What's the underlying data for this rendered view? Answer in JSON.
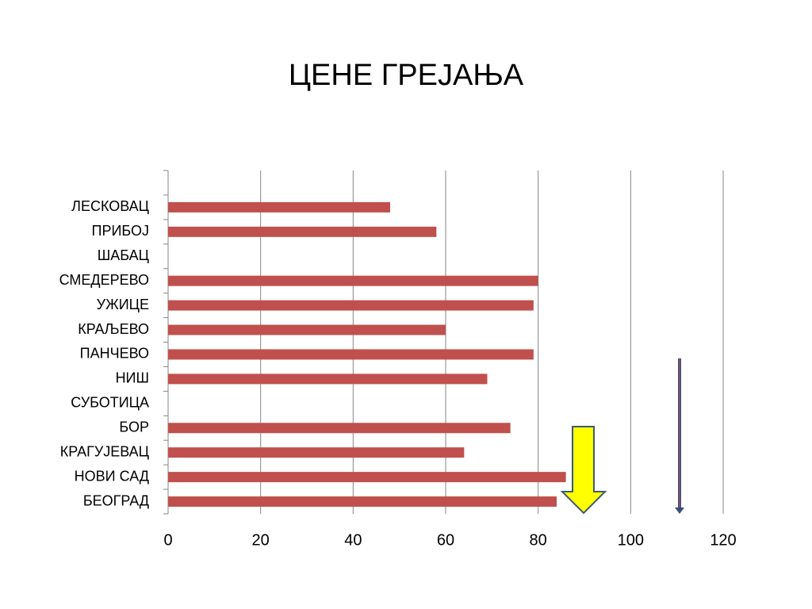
{
  "chart_data": {
    "type": "bar",
    "orientation": "horizontal",
    "title": "ЦЕНЕ ГРЕЈАЊА",
    "categories": [
      null,
      "ЛЕСКОВАЦ",
      "ПРИБОЈ",
      "ШАБАЦ",
      "СМЕДЕРЕВО",
      "УЖИЦЕ",
      "КРАЉЕВО",
      "ПАНЧЕВО",
      "НИШ",
      "СУБОТИЦА",
      "БОР",
      "КРАГУЈЕВАЦ",
      "НОВИ САД",
      "БЕОГРАД"
    ],
    "values": [
      null,
      48,
      58,
      null,
      80,
      79,
      60,
      79,
      69,
      null,
      74,
      64,
      86,
      84
    ],
    "color": "#c0504d",
    "xlim": [
      0,
      120
    ],
    "xticks": [
      0,
      20,
      40,
      60,
      80,
      100,
      120
    ],
    "grid": true
  }
}
